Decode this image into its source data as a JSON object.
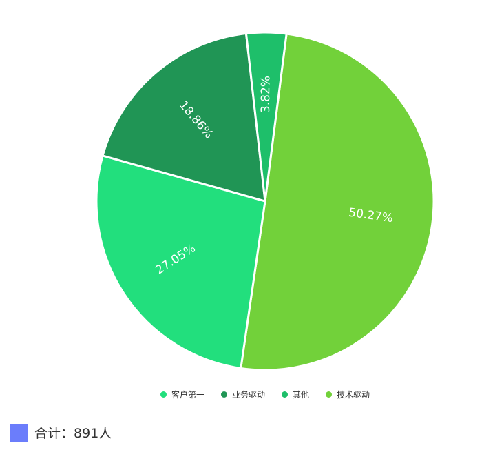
{
  "chart_data": {
    "type": "pie",
    "slices": [
      {
        "name": "技术驱动",
        "value": 50.27,
        "label": "50.27%",
        "color": "#72d13a"
      },
      {
        "name": "客户第一",
        "value": 27.05,
        "label": "27.05%",
        "color": "#22df7d"
      },
      {
        "name": "业务驱动",
        "value": 18.86,
        "label": "18.86%",
        "color": "#209555"
      },
      {
        "name": "其他",
        "value": 3.82,
        "label": "3.82%",
        "color": "#1ebf6a"
      }
    ],
    "legend": [
      {
        "name": "客户第一",
        "color": "#22df7d"
      },
      {
        "name": "业务驱动",
        "color": "#209555"
      },
      {
        "name": "其他",
        "color": "#1ebf6a"
      },
      {
        "name": "技术驱动",
        "color": "#72d13a"
      }
    ],
    "legend_position": "bottom"
  },
  "summary": {
    "label": "合计：",
    "value": "891人",
    "color": "#6b7dfb"
  }
}
